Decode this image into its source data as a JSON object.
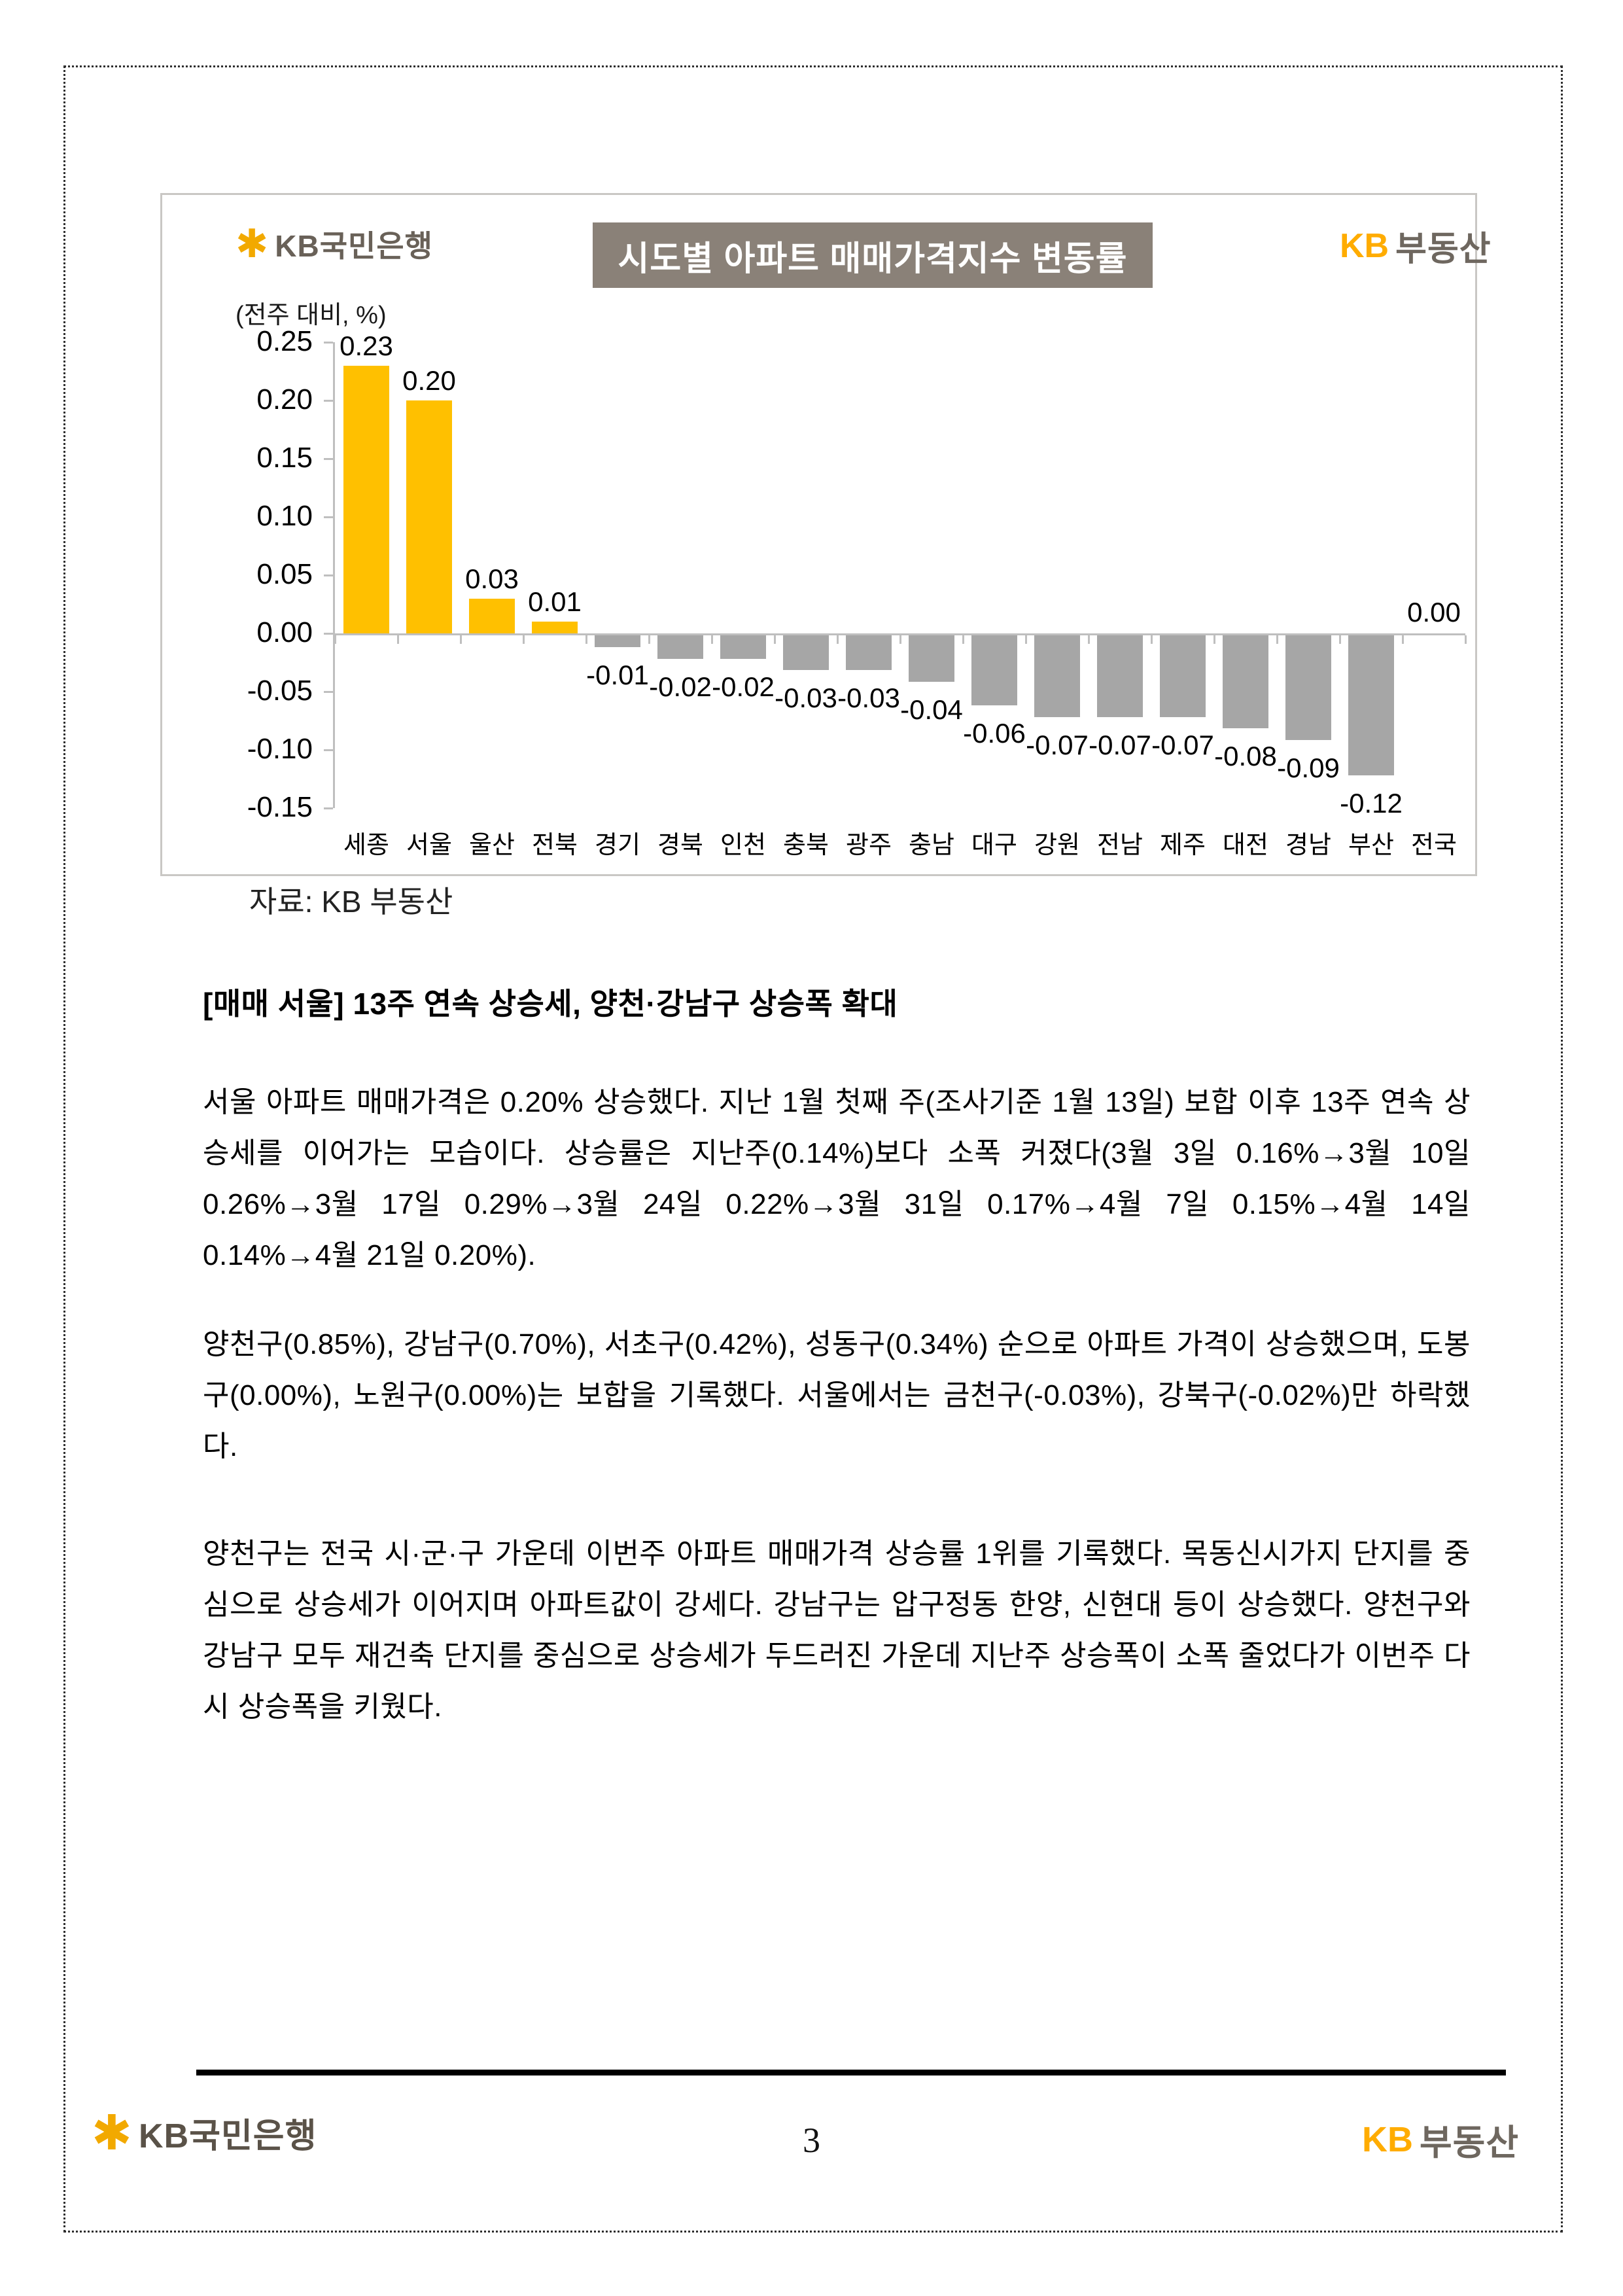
{
  "chart_header": {
    "bank_logo": {
      "symbol": "✱",
      "text": "KB국민은행"
    },
    "title": "시도별 아파트 매매가격지수 변동률",
    "brand_logo": {
      "kb": "KB",
      "suffix": "부동산"
    }
  },
  "chart_data": {
    "type": "bar",
    "title": "시도별 아파트 매매가격지수 변동률",
    "unit_label": "(전주 대비, %)",
    "xlabel": "",
    "ylabel": "(전주 대비, %)",
    "categories": [
      "세종",
      "서울",
      "울산",
      "전북",
      "경기",
      "경북",
      "인천",
      "충북",
      "광주",
      "충남",
      "대구",
      "강원",
      "전남",
      "제주",
      "대전",
      "경남",
      "부산",
      "전국"
    ],
    "values": [
      0.23,
      0.2,
      0.03,
      0.01,
      -0.01,
      -0.02,
      -0.02,
      -0.03,
      -0.03,
      -0.04,
      -0.06,
      -0.07,
      -0.07,
      -0.07,
      -0.08,
      -0.09,
      -0.12,
      0.0
    ],
    "ylim": [
      -0.15,
      0.25
    ],
    "ytick_step": 0.05,
    "grid": false,
    "legend": "none",
    "value_labels": true,
    "bar_colors": {
      "positive": "#FFC000",
      "negative": "#A6A6A6"
    }
  },
  "source_note": "자료: KB 부동산",
  "article": {
    "heading": "[매매 서울] 13주 연속 상승세, 양천·강남구 상승폭 확대",
    "paragraphs": [
      "서울 아파트 매매가격은 0.20% 상승했다. 지난 1월 첫째 주(조사기준 1월 13일) 보합 이후 13주 연속 상승세를 이어가는 모습이다. 상승률은 지난주(0.14%)보다 소폭 커졌다(3월 3일 0.16%→3월 10일 0.26%→3월 17일 0.29%→3월 24일 0.22%→3월 31일 0.17%→4월 7일 0.15%→4월 14일 0.14%→4월 21일 0.20%).",
      "양천구(0.85%), 강남구(0.70%), 서초구(0.42%), 성동구(0.34%) 순으로 아파트 가격이 상승했으며, 도봉구(0.00%), 노원구(0.00%)는 보합을 기록했다. 서울에서는 금천구(-0.03%), 강북구(-0.02%)만 하락했다.",
      "양천구는 전국 시·군·구 가운데 이번주 아파트 매매가격 상승률 1위를 기록했다. 목동신시가지 단지를 중심으로 상승세가 이어지며 아파트값이 강세다. 강남구는 압구정동 한양, 신현대 등이 상승했다. 양천구와 강남구 모두 재건축 단지를 중심으로 상승세가 두드러진 가운데 지난주 상승폭이 소폭 줄었다가 이번주 다시 상승폭을 키웠다."
    ]
  },
  "footer": {
    "bank_logo": {
      "symbol": "✱",
      "text": "KB국민은행"
    },
    "brand_logo": {
      "kb": "KB",
      "suffix": "부동산"
    },
    "page_number": "3"
  },
  "colors": {
    "positive_bar": "#FFC000",
    "negative_bar": "#A6A6A6",
    "title_bg": "#8A8178",
    "axis_line": "#BFBFBF",
    "logo_orange": "#F2A900",
    "logo_gray": "#696158",
    "footer_rule": "#000000"
  }
}
